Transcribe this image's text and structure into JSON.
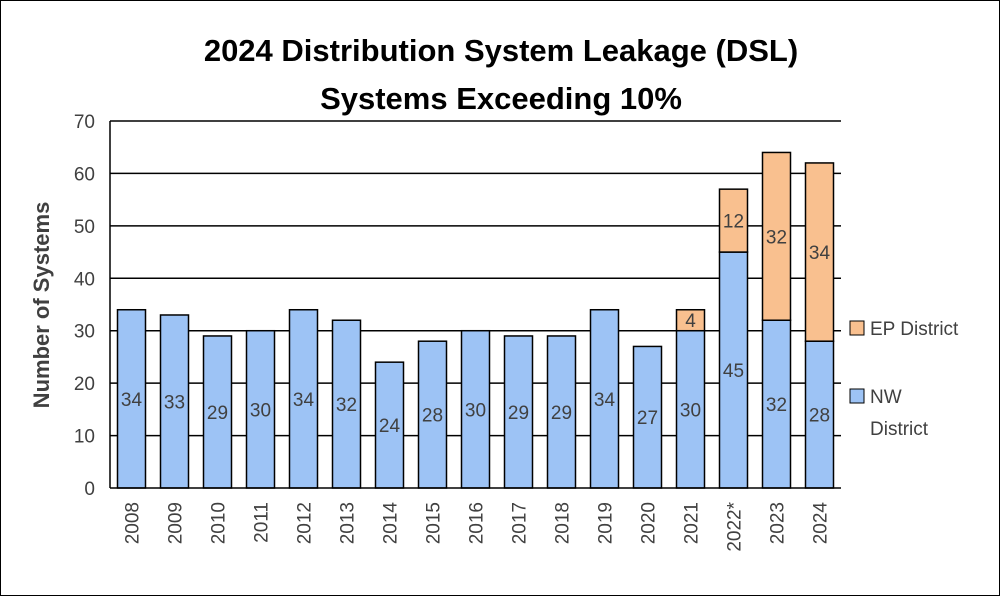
{
  "chart_data": {
    "type": "bar",
    "stacked": true,
    "title_lines": [
      "2024 Distribution System Leakage (DSL)",
      "Systems Exceeding 10%"
    ],
    "xlabel": "",
    "ylabel": "Number of Systems",
    "ylim": [
      0,
      70
    ],
    "yticks": [
      0,
      10,
      20,
      30,
      40,
      50,
      60,
      70
    ],
    "grid": true,
    "legend_position": "right",
    "categories": [
      "2008",
      "2009",
      "2010",
      "2011",
      "2012",
      "2013",
      "2014",
      "2015",
      "2016",
      "2017",
      "2018",
      "2019",
      "2020",
      "2021",
      "2022*",
      "2023",
      "2024"
    ],
    "series": [
      {
        "name_lines": [
          "NW",
          "District"
        ],
        "color": "#9DC3F5",
        "values": [
          34,
          33,
          29,
          30,
          34,
          32,
          24,
          28,
          30,
          29,
          29,
          34,
          27,
          30,
          45,
          32,
          28
        ]
      },
      {
        "name_lines": [
          "EP District"
        ],
        "color": "#F9C08F",
        "values": [
          0,
          0,
          0,
          0,
          0,
          0,
          0,
          0,
          0,
          0,
          0,
          0,
          0,
          4,
          12,
          32,
          34
        ]
      }
    ]
  }
}
